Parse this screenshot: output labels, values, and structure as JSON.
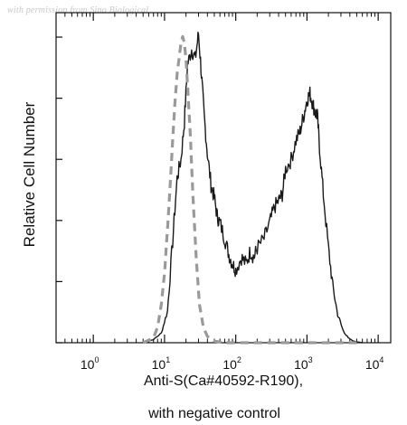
{
  "watermark": "with permission from Sino Biological",
  "chart_data": {
    "type": "line",
    "title": "",
    "xlabel_line1": "Anti-S(Ca#40592-R190),",
    "xlabel_line2": "with negative control",
    "ylabel": "Relative Cell Number",
    "x_scale": "log",
    "xlim": [
      0.3,
      15000
    ],
    "ylim": [
      0,
      1.0
    ],
    "x_ticks": [
      {
        "base": "10",
        "exp": "0",
        "value": 1
      },
      {
        "base": "10",
        "exp": "1",
        "value": 10
      },
      {
        "base": "10",
        "exp": "2",
        "value": 100
      },
      {
        "base": "10",
        "exp": "3",
        "value": 1000
      },
      {
        "base": "10",
        "exp": "4",
        "value": 10000
      }
    ],
    "grid": false,
    "series": [
      {
        "style": "solid",
        "color": "#1a1a1a",
        "x": [
          5,
          7,
          9,
          11,
          13,
          15,
          17,
          19,
          21,
          24,
          27,
          30,
          33,
          36,
          40,
          45,
          50,
          55,
          60,
          70,
          80,
          90,
          100,
          120,
          140,
          160,
          180,
          200,
          250,
          300,
          350,
          400,
          450,
          500,
          600,
          700,
          800,
          900,
          1000,
          1100,
          1200,
          1300,
          1400,
          1500,
          1700,
          2000,
          2300,
          2700,
          3200,
          3800,
          4500,
          6000
        ],
        "y": [
          0.0,
          0.01,
          0.03,
          0.1,
          0.32,
          0.52,
          0.58,
          0.7,
          0.88,
          0.93,
          0.9,
          0.98,
          0.85,
          0.72,
          0.6,
          0.5,
          0.46,
          0.4,
          0.38,
          0.33,
          0.28,
          0.25,
          0.23,
          0.27,
          0.25,
          0.29,
          0.27,
          0.3,
          0.33,
          0.38,
          0.43,
          0.45,
          0.47,
          0.55,
          0.58,
          0.64,
          0.67,
          0.72,
          0.77,
          0.79,
          0.76,
          0.73,
          0.72,
          0.62,
          0.47,
          0.3,
          0.18,
          0.09,
          0.04,
          0.015,
          0.005,
          0.0
        ]
      },
      {
        "style": "dashed",
        "color": "#9a9a9a",
        "x": [
          5,
          7,
          8,
          9,
          10,
          11,
          12,
          13,
          14,
          15,
          16,
          17,
          18,
          19,
          20,
          21,
          23,
          25,
          28,
          31,
          35,
          40,
          50,
          70,
          100,
          1000,
          5000
        ],
        "y": [
          0.0,
          0.015,
          0.05,
          0.12,
          0.22,
          0.36,
          0.5,
          0.64,
          0.76,
          0.85,
          0.9,
          0.95,
          0.97,
          0.95,
          0.9,
          0.82,
          0.66,
          0.47,
          0.26,
          0.12,
          0.05,
          0.02,
          0.005,
          0.0,
          0.0,
          0.0,
          0.0
        ]
      }
    ]
  }
}
